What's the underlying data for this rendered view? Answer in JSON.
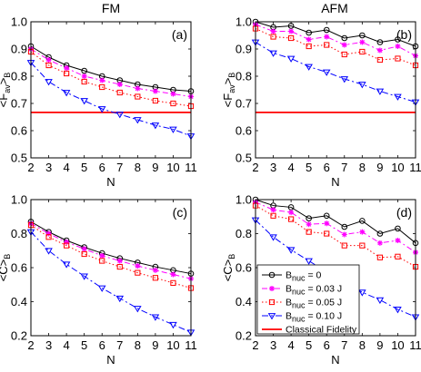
{
  "chart_data": [
    {
      "id": "a",
      "column_title": "FM",
      "panel_label": "(a)",
      "type": "line",
      "xlabel": "N",
      "ylabel_parts": [
        "<F",
        "av",
        ">",
        "B"
      ],
      "xlim": [
        2,
        11
      ],
      "ylim": [
        0.5,
        1.0
      ],
      "xticks": [
        "2",
        "3",
        "4",
        "5",
        "6",
        "7",
        "8",
        "9",
        "10",
        "11"
      ],
      "yticks": [
        "0.5",
        "0.6",
        "0.7",
        "0.8",
        "0.9",
        "1.0"
      ],
      "x": [
        2,
        3,
        4,
        5,
        6,
        7,
        8,
        9,
        10,
        11
      ],
      "classical_fidelity": 0.667,
      "series": [
        {
          "key": "b0",
          "values": [
            0.91,
            0.87,
            0.84,
            0.82,
            0.8,
            0.785,
            0.77,
            0.76,
            0.75,
            0.745
          ]
        },
        {
          "key": "b03",
          "values": [
            0.9,
            0.86,
            0.83,
            0.8,
            0.785,
            0.77,
            0.755,
            0.745,
            0.735,
            0.725
          ]
        },
        {
          "key": "b05",
          "values": [
            0.89,
            0.84,
            0.81,
            0.78,
            0.76,
            0.74,
            0.725,
            0.71,
            0.7,
            0.69
          ]
        },
        {
          "key": "b10",
          "values": [
            0.85,
            0.78,
            0.74,
            0.71,
            0.68,
            0.66,
            0.64,
            0.62,
            0.605,
            0.58
          ]
        }
      ]
    },
    {
      "id": "b",
      "column_title": "AFM",
      "panel_label": "(b)",
      "type": "line",
      "xlabel": "N",
      "ylabel_parts": [
        "<F",
        "av",
        ">",
        "B"
      ],
      "xlim": [
        2,
        11
      ],
      "ylim": [
        0.5,
        1.0
      ],
      "xticks": [
        "2",
        "3",
        "4",
        "5",
        "6",
        "7",
        "8",
        "9",
        "10",
        "11"
      ],
      "yticks": [
        "0.5",
        "0.6",
        "0.7",
        "0.8",
        "0.9",
        "1.0"
      ],
      "x": [
        2,
        3,
        4,
        5,
        6,
        7,
        8,
        9,
        10,
        11
      ],
      "classical_fidelity": 0.667,
      "series": [
        {
          "key": "b0",
          "values": [
            1.0,
            0.98,
            0.985,
            0.96,
            0.97,
            0.94,
            0.95,
            0.925,
            0.935,
            0.91
          ]
        },
        {
          "key": "b03",
          "values": [
            0.99,
            0.965,
            0.965,
            0.935,
            0.945,
            0.915,
            0.925,
            0.895,
            0.91,
            0.875
          ]
        },
        {
          "key": "b05",
          "values": [
            0.975,
            0.945,
            0.94,
            0.91,
            0.915,
            0.88,
            0.89,
            0.86,
            0.865,
            0.84
          ]
        },
        {
          "key": "b10",
          "values": [
            0.925,
            0.885,
            0.865,
            0.835,
            0.815,
            0.79,
            0.77,
            0.745,
            0.725,
            0.705
          ]
        }
      ]
    },
    {
      "id": "c",
      "panel_label": "(c)",
      "type": "line",
      "xlabel": "N",
      "ylabel_parts": [
        "<C>",
        "B"
      ],
      "xlim": [
        2,
        11
      ],
      "ylim": [
        0.2,
        1.0
      ],
      "xticks": [
        "2",
        "3",
        "4",
        "5",
        "6",
        "7",
        "8",
        "9",
        "10",
        "11"
      ],
      "yticks": [
        "0.2",
        "0.4",
        "0.6",
        "0.8",
        "1.0"
      ],
      "x": [
        2,
        3,
        4,
        5,
        6,
        7,
        8,
        9,
        10,
        11
      ],
      "series": [
        {
          "key": "b0",
          "values": [
            0.87,
            0.81,
            0.76,
            0.72,
            0.685,
            0.655,
            0.63,
            0.605,
            0.585,
            0.565
          ]
        },
        {
          "key": "b03",
          "values": [
            0.86,
            0.8,
            0.75,
            0.71,
            0.67,
            0.64,
            0.61,
            0.585,
            0.56,
            0.535
          ]
        },
        {
          "key": "b05",
          "values": [
            0.85,
            0.78,
            0.73,
            0.68,
            0.64,
            0.605,
            0.57,
            0.54,
            0.51,
            0.48
          ]
        },
        {
          "key": "b10",
          "values": [
            0.81,
            0.7,
            0.62,
            0.55,
            0.48,
            0.42,
            0.36,
            0.31,
            0.265,
            0.22
          ]
        }
      ]
    },
    {
      "id": "d",
      "panel_label": "(d)",
      "type": "line",
      "xlabel": "N",
      "ylabel_parts": [
        "<C>",
        "B"
      ],
      "xlim": [
        2,
        11
      ],
      "ylim": [
        0.2,
        1.0
      ],
      "xticks": [
        "2",
        "3",
        "4",
        "5",
        "6",
        "7",
        "8",
        "9",
        "10",
        "11"
      ],
      "yticks": [
        "0.2",
        "0.4",
        "0.6",
        "0.8",
        "1.0"
      ],
      "x": [
        2,
        3,
        4,
        5,
        6,
        7,
        8,
        9,
        10,
        11
      ],
      "legend": {
        "placement": "bottom-left",
        "entries": [
          {
            "key": "b0",
            "parts": [
              "B",
              "nuc",
              " = 0"
            ]
          },
          {
            "key": "b03",
            "parts": [
              "B",
              "nuc",
              " = 0.03 J"
            ]
          },
          {
            "key": "b05",
            "parts": [
              "B",
              "nuc",
              " = 0.05 J"
            ]
          },
          {
            "key": "b10",
            "parts": [
              "B",
              "nuc",
              " = 0.10 J"
            ]
          },
          {
            "key": "classical",
            "parts": [
              "Classical Fidelity"
            ]
          }
        ]
      },
      "series": [
        {
          "key": "b0",
          "values": [
            1.0,
            0.965,
            0.955,
            0.89,
            0.905,
            0.84,
            0.875,
            0.8,
            0.83,
            0.745
          ]
        },
        {
          "key": "b03",
          "values": [
            0.985,
            0.94,
            0.925,
            0.855,
            0.86,
            0.795,
            0.81,
            0.745,
            0.76,
            0.69
          ]
        },
        {
          "key": "b05",
          "values": [
            0.965,
            0.905,
            0.885,
            0.81,
            0.8,
            0.73,
            0.73,
            0.66,
            0.665,
            0.605
          ]
        },
        {
          "key": "b10",
          "values": [
            0.88,
            0.78,
            0.705,
            0.64,
            0.575,
            0.51,
            0.455,
            0.41,
            0.355,
            0.31
          ]
        }
      ]
    }
  ],
  "styles": {
    "b0": {
      "color": "#000000",
      "marker": "circle",
      "dash": ""
    },
    "b03": {
      "color": "#ff00ff",
      "marker": "star",
      "dash": "6,3,2,3"
    },
    "b05": {
      "color": "#ff0000",
      "marker": "square",
      "dash": "1.5,2.5"
    },
    "b10": {
      "color": "#0000ff",
      "marker": "triangle-down",
      "dash": "7,3,2,3"
    },
    "classical": {
      "color": "#ff0000"
    }
  }
}
